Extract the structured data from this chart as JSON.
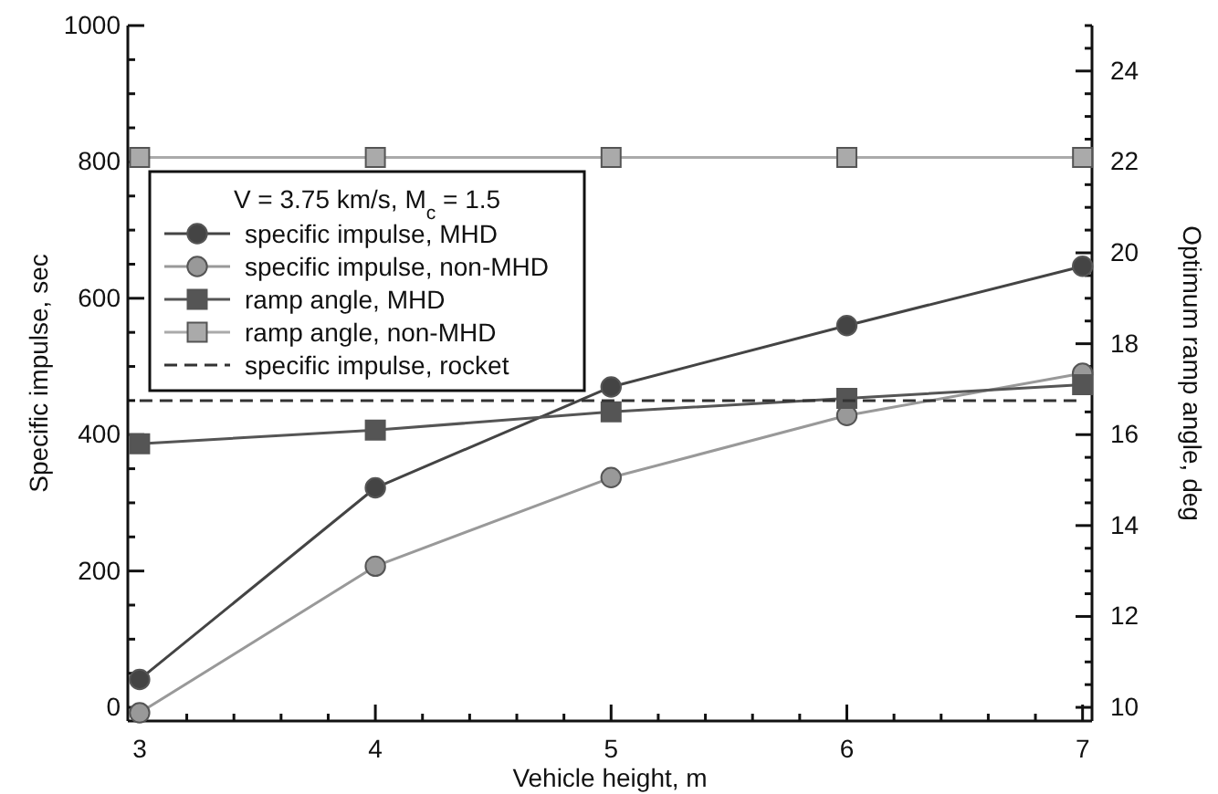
{
  "chart_data": {
    "type": "line",
    "xlabel": "Vehicle height, m",
    "ylabel": "Specific impulse, sec",
    "y2label": "Optimum ramp angle, deg",
    "legend_title": "V = 3.75 km/s, M$_{c}$ = 1.5",
    "legend": "top left",
    "x": [
      3,
      4,
      5,
      6,
      7
    ],
    "xlim": [
      2.95,
      7.04
    ],
    "xticks": [
      3,
      {
        "value": 3.2,
        "label": null
      },
      {
        "value": 3.4,
        "label": null
      },
      {
        "value": 3.6,
        "label": null
      },
      {
        "value": 3.8,
        "label": null
      },
      4,
      {
        "value": 4.2,
        "label": null
      },
      {
        "value": 4.4,
        "label": null
      },
      {
        "value": 4.6,
        "label": null
      },
      {
        "value": 4.8,
        "label": null
      },
      5,
      {
        "value": 5.2,
        "label": null
      },
      {
        "value": 5.4,
        "label": null
      },
      {
        "value": 5.6,
        "label": null
      },
      {
        "value": 5.8,
        "label": null
      },
      6,
      {
        "value": 6.2,
        "label": null
      },
      {
        "value": 6.4,
        "label": null
      },
      {
        "value": 6.6,
        "label": null
      },
      {
        "value": 6.8,
        "label": null
      },
      7
    ],
    "ylim": [
      -20,
      1000
    ],
    "yticks": [
      0,
      {
        "value": 50,
        "label": null
      },
      {
        "value": 100,
        "label": null
      },
      {
        "value": 150,
        "label": null
      },
      200,
      {
        "value": 250,
        "label": null
      },
      {
        "value": 300,
        "label": null
      },
      {
        "value": 350,
        "label": null
      },
      400,
      {
        "value": 450,
        "label": null
      },
      {
        "value": 500,
        "label": null
      },
      {
        "value": 550,
        "label": null
      },
      600,
      {
        "value": 650,
        "label": null
      },
      {
        "value": 700,
        "label": null
      },
      {
        "value": 750,
        "label": null
      },
      800,
      {
        "value": 850,
        "label": null
      },
      {
        "value": 900,
        "label": null
      },
      {
        "value": 950,
        "label": null
      },
      1000
    ],
    "y2lim": [
      9.7,
      25
    ],
    "y2ticks": [
      10,
      {
        "value": 10.5,
        "label": null
      },
      {
        "value": 11,
        "label": null
      },
      {
        "value": 11.5,
        "label": null
      },
      12,
      {
        "value": 12.5,
        "label": null
      },
      {
        "value": 13,
        "label": null
      },
      {
        "value": 13.5,
        "label": null
      },
      14,
      {
        "value": 14.5,
        "label": null
      },
      {
        "value": 15,
        "label": null
      },
      {
        "value": 15.5,
        "label": null
      },
      16,
      {
        "value": 16.5,
        "label": null
      },
      {
        "value": 17,
        "label": null
      },
      {
        "value": 17.5,
        "label": null
      },
      18,
      {
        "value": 18.5,
        "label": null
      },
      {
        "value": 19,
        "label": null
      },
      {
        "value": 19.5,
        "label": null
      },
      20,
      {
        "value": 20.5,
        "label": null
      },
      {
        "value": 21,
        "label": null
      },
      {
        "value": 21.5,
        "label": null
      },
      22,
      {
        "value": 22.5,
        "label": null
      },
      {
        "value": 23,
        "label": null
      },
      {
        "value": 23.5,
        "label": null
      },
      24,
      {
        "value": 24.5,
        "label": null
      },
      {
        "value": 25,
        "label": null
      }
    ],
    "series": [
      {
        "name": "specific impulse, MHD",
        "color": "#444444",
        "marker": "circle",
        "values": [
          41,
          322,
          470,
          560,
          647
        ]
      },
      {
        "name": "specific impulse, non-MHD",
        "color": "#999999",
        "marker": "circle",
        "values": [
          -8,
          207,
          337,
          428,
          490
        ]
      },
      {
        "name": "ramp angle, MHD",
        "color": "#555555",
        "marker": "square",
        "axis": "y2",
        "values": [
          15.8,
          16.1,
          16.5,
          16.8,
          17.1
        ]
      },
      {
        "name": "ramp angle, non-MHD",
        "color": "#aaaaaa",
        "marker": "square",
        "axis": "y2",
        "values": [
          22.1,
          22.1,
          22.1,
          22.1,
          22.1
        ]
      },
      {
        "name": "specific impulse, rocket",
        "color": "#333333",
        "marker": "none",
        "line_style": "dashed",
        "x": [
          3,
          7
        ],
        "values": [
          450,
          450
        ]
      }
    ]
  }
}
